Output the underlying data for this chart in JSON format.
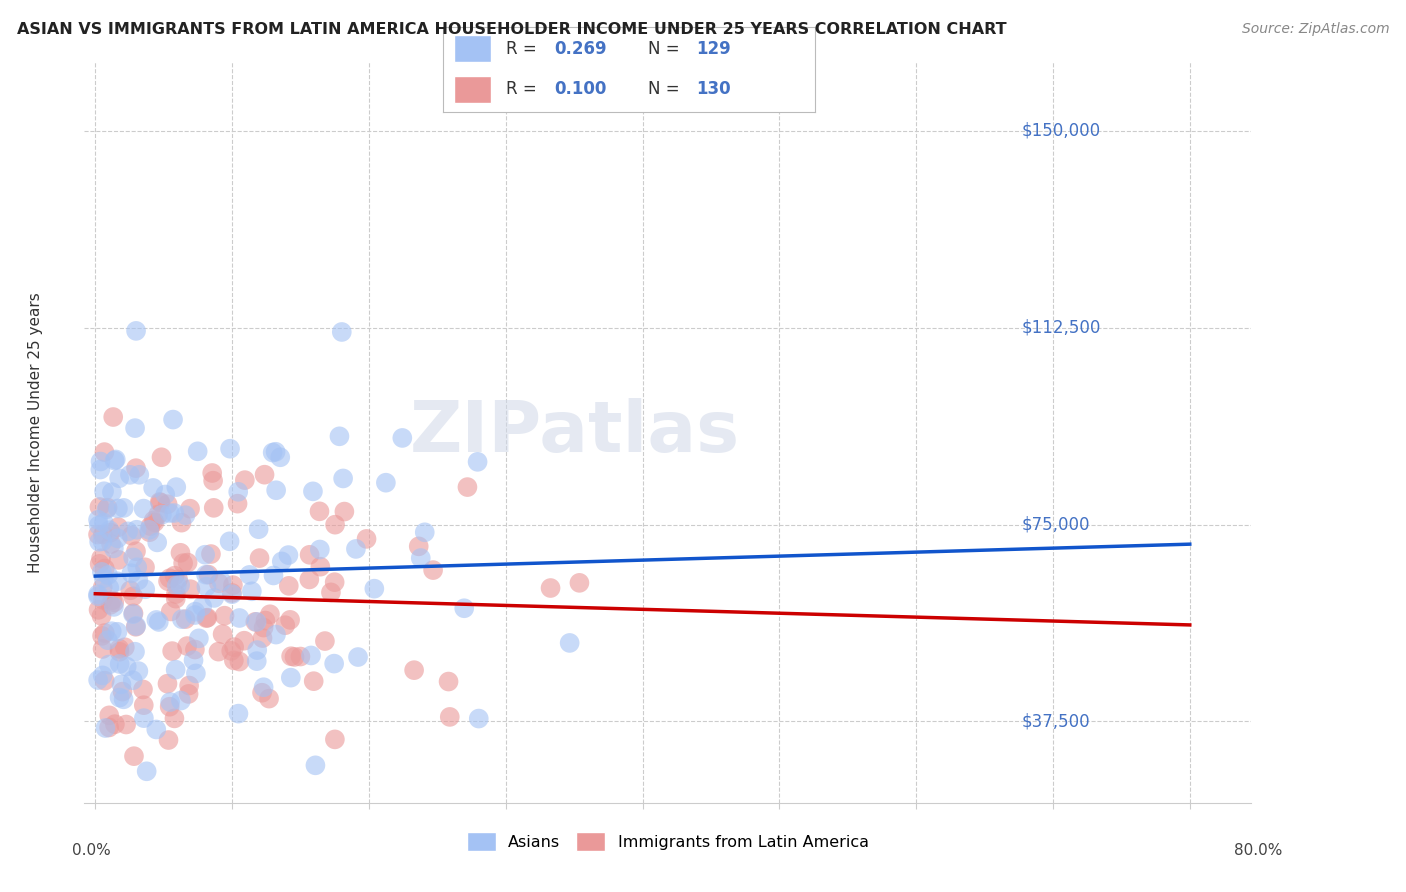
{
  "title": "ASIAN VS IMMIGRANTS FROM LATIN AMERICA HOUSEHOLDER INCOME UNDER 25 YEARS CORRELATION CHART",
  "source": "Source: ZipAtlas.com",
  "ylabel": "Householder Income Under 25 years",
  "ytick_labels": [
    "$150,000",
    "$112,500",
    "$75,000",
    "$37,500"
  ],
  "ytick_values": [
    150000,
    112500,
    75000,
    37500
  ],
  "ymin": 22000,
  "ymax": 163000,
  "xmin": -0.008,
  "xmax": 0.845,
  "asian_color": "#a4c2f4",
  "latin_color": "#ea9999",
  "asian_line_color": "#1155cc",
  "latin_line_color": "#cc0000",
  "watermark": "ZIPatlas",
  "R_asian": 0.269,
  "N_asian": 129,
  "R_latin": 0.1,
  "N_latin": 130,
  "legend_blue_r": "0.269",
  "legend_blue_n": "129",
  "legend_pink_r": "0.100",
  "legend_pink_n": "130",
  "legend_bottom_1": "Asians",
  "legend_bottom_2": "Immigrants from Latin America"
}
